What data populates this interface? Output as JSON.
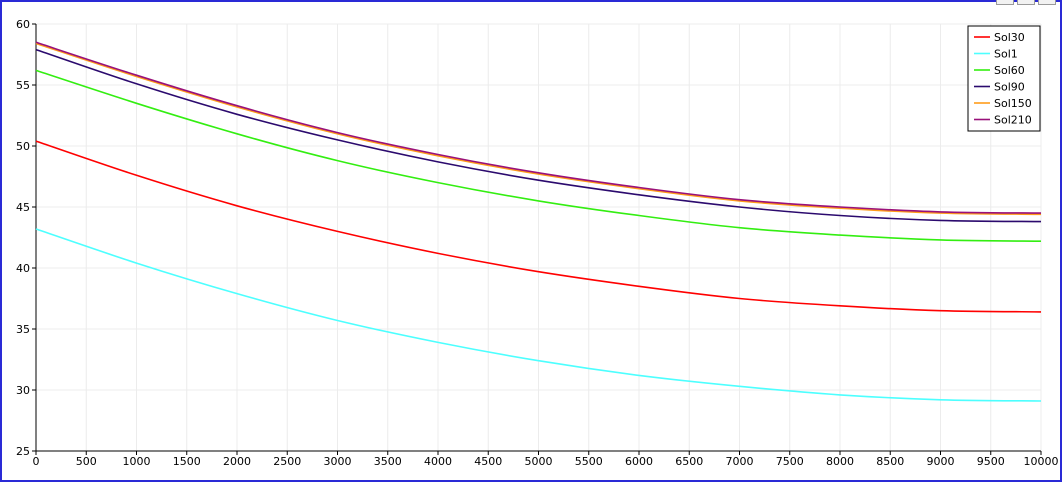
{
  "chart_data": {
    "type": "line",
    "title": "",
    "xlabel": "",
    "ylabel": "",
    "xlim": [
      0,
      10000
    ],
    "ylim": [
      25,
      60
    ],
    "xticks": [
      0,
      500,
      1000,
      1500,
      2000,
      2500,
      3000,
      3500,
      4000,
      4500,
      5000,
      5500,
      6000,
      6500,
      7000,
      7500,
      8000,
      8500,
      9000,
      9500,
      10000
    ],
    "yticks": [
      25,
      30,
      35,
      40,
      45,
      50,
      55,
      60
    ],
    "grid": true,
    "legend_position": "top-right",
    "x": [
      0,
      1000,
      2000,
      3000,
      4000,
      5000,
      6000,
      7000,
      8000,
      9000,
      10000
    ],
    "series": [
      {
        "name": "Sol30",
        "color": "#ff0000",
        "values": [
          50.4,
          47.6,
          45.1,
          43.0,
          41.2,
          39.7,
          38.5,
          37.5,
          36.9,
          36.5,
          36.4
        ]
      },
      {
        "name": "Sol1",
        "color": "#4dffff",
        "values": [
          43.2,
          40.4,
          37.9,
          35.7,
          33.9,
          32.4,
          31.2,
          30.3,
          29.6,
          29.2,
          29.1
        ]
      },
      {
        "name": "Sol60",
        "color": "#33ee11",
        "values": [
          56.2,
          53.5,
          51.0,
          48.8,
          47.0,
          45.5,
          44.3,
          43.3,
          42.7,
          42.3,
          42.2
        ]
      },
      {
        "name": "Sol90",
        "color": "#2b0a6e",
        "values": [
          57.9,
          55.1,
          52.6,
          50.5,
          48.7,
          47.2,
          46.0,
          45.0,
          44.3,
          43.9,
          43.8
        ]
      },
      {
        "name": "Sol150",
        "color": "#ff9c1a",
        "values": [
          58.4,
          55.7,
          53.2,
          51.0,
          49.2,
          47.7,
          46.5,
          45.5,
          44.9,
          44.5,
          44.4
        ]
      },
      {
        "name": "Sol210",
        "color": "#99117a",
        "values": [
          58.5,
          55.8,
          53.3,
          51.1,
          49.3,
          47.8,
          46.6,
          45.6,
          45.0,
          44.6,
          44.5
        ]
      }
    ]
  }
}
